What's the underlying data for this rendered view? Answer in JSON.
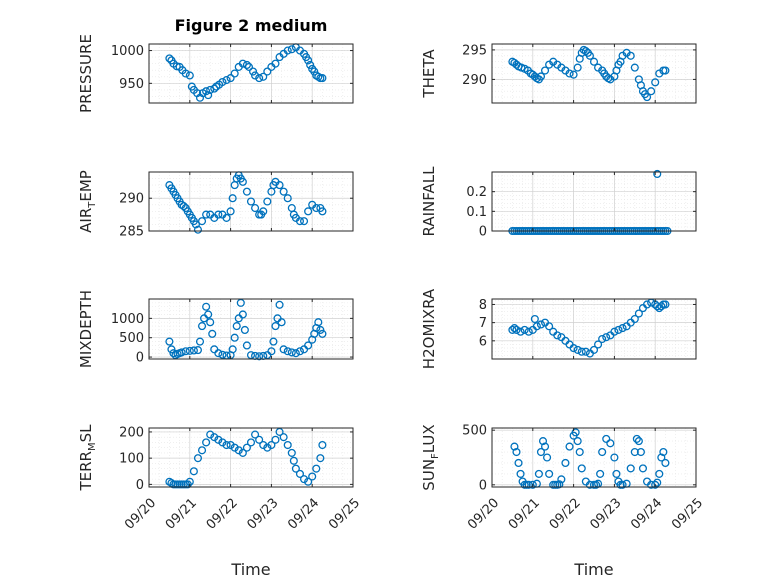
{
  "figure_title": "Figure 2 medium",
  "xlabel": "Time",
  "x_tick_labels": [
    "09/20",
    "09/21",
    "09/22",
    "09/23",
    "09/24",
    "09/25"
  ],
  "marker_color": "#0072bd",
  "chart_data": [
    {
      "type": "scatter",
      "ylabel": "PRESSURE",
      "ylim": [
        920,
        1010
      ],
      "yticks": [
        "950",
        "1000"
      ],
      "ytick_values": [
        950,
        1000
      ],
      "x_days": [
        0.5,
        0.55,
        0.6,
        0.68,
        0.75,
        0.82,
        0.9,
        1.0,
        1.05,
        1.1,
        1.18,
        1.25,
        1.32,
        1.4,
        1.45,
        1.5,
        1.6,
        1.65,
        1.72,
        1.8,
        1.9,
        2.0,
        2.1,
        2.2,
        2.3,
        2.4,
        2.45,
        2.55,
        2.6,
        2.7,
        2.8,
        2.9,
        3.0,
        3.1,
        3.2,
        3.3,
        3.4,
        3.5,
        3.6,
        3.7,
        3.8,
        3.85,
        3.9,
        3.95,
        4.0,
        4.05,
        4.1,
        4.15,
        4.2,
        4.25
      ],
      "values": [
        988,
        985,
        980,
        976,
        975,
        970,
        965,
        962,
        945,
        940,
        935,
        928,
        935,
        938,
        932,
        940,
        942,
        945,
        948,
        952,
        955,
        958,
        965,
        975,
        980,
        978,
        975,
        968,
        962,
        958,
        960,
        968,
        975,
        980,
        990,
        995,
        1000,
        1002,
        1005,
        1000,
        995,
        990,
        985,
        978,
        972,
        968,
        962,
        960,
        958,
        958
      ]
    },
    {
      "type": "scatter",
      "ylabel": "THETA",
      "ylim": [
        286,
        296
      ],
      "yticks": [
        "290",
        "295"
      ],
      "ytick_values": [
        290,
        295
      ],
      "x_days": [
        0.5,
        0.55,
        0.6,
        0.65,
        0.72,
        0.8,
        0.88,
        0.95,
        1.0,
        1.05,
        1.1,
        1.15,
        1.2,
        1.3,
        1.4,
        1.5,
        1.6,
        1.7,
        1.8,
        1.9,
        2.0,
        2.1,
        2.15,
        2.2,
        2.25,
        2.3,
        2.35,
        2.4,
        2.5,
        2.6,
        2.7,
        2.75,
        2.8,
        2.85,
        2.9,
        3.0,
        3.05,
        3.1,
        3.15,
        3.2,
        3.3,
        3.4,
        3.5,
        3.6,
        3.65,
        3.7,
        3.75,
        3.8,
        3.9,
        4.0,
        4.1,
        4.2,
        4.25
      ],
      "values": [
        293,
        292.8,
        292.5,
        292.2,
        292,
        291.8,
        291.5,
        291,
        290.8,
        290.5,
        290.2,
        290,
        290.5,
        291.5,
        292.5,
        293,
        292.5,
        292,
        291.5,
        291,
        290.8,
        292,
        293.5,
        294.5,
        295,
        294.8,
        294.5,
        294,
        293,
        292,
        291.5,
        291,
        290.5,
        290.2,
        290,
        290.5,
        291.5,
        292.5,
        293,
        294,
        294.5,
        294,
        292,
        290,
        289,
        288,
        287.5,
        287,
        288,
        289.5,
        291,
        291.5,
        291.5
      ]
    },
    {
      "type": "scatter",
      "ylabel": "AIR_TEMP",
      "ylim": [
        285,
        294
      ],
      "yticks": [
        "285",
        "290"
      ],
      "ytick_values": [
        285,
        290
      ],
      "x_days": [
        0.5,
        0.55,
        0.6,
        0.65,
        0.7,
        0.75,
        0.8,
        0.85,
        0.9,
        0.95,
        1.0,
        1.05,
        1.1,
        1.15,
        1.2,
        1.3,
        1.4,
        1.5,
        1.6,
        1.7,
        1.8,
        1.9,
        2.0,
        2.05,
        2.1,
        2.15,
        2.2,
        2.25,
        2.3,
        2.4,
        2.5,
        2.6,
        2.7,
        2.75,
        2.8,
        2.9,
        3.0,
        3.05,
        3.1,
        3.2,
        3.3,
        3.4,
        3.5,
        3.55,
        3.6,
        3.7,
        3.8,
        3.9,
        4.0,
        4.1,
        4.2,
        4.25
      ],
      "values": [
        292,
        291.5,
        291,
        290.5,
        290,
        289.5,
        289,
        288.8,
        288.5,
        288,
        287.5,
        287,
        286.5,
        286,
        285.2,
        286.5,
        287.5,
        287.5,
        287,
        287.5,
        287.5,
        287,
        288,
        290,
        292,
        293,
        293.5,
        293,
        292.5,
        291,
        289.5,
        288.5,
        287.5,
        287.5,
        288,
        289.5,
        291,
        292,
        292.5,
        292,
        291,
        290,
        288.5,
        287.5,
        287,
        286.5,
        286.5,
        288,
        289,
        288.5,
        288.5,
        288
      ]
    },
    {
      "type": "scatter",
      "ylabel": "RAINFALL",
      "ylim": [
        0,
        0.3
      ],
      "yticks": [
        "0",
        "0.1",
        "0.2"
      ],
      "ytick_values": [
        0,
        0.1,
        0.2
      ],
      "x_days": [
        0.5,
        0.55,
        0.6,
        0.65,
        0.7,
        0.75,
        0.8,
        0.85,
        0.9,
        0.95,
        1.0,
        1.05,
        1.1,
        1.15,
        1.2,
        1.25,
        1.3,
        1.35,
        1.4,
        1.45,
        1.5,
        1.55,
        1.6,
        1.65,
        1.7,
        1.75,
        1.8,
        1.85,
        1.9,
        1.95,
        2.0,
        2.05,
        2.1,
        2.15,
        2.2,
        2.25,
        2.3,
        2.35,
        2.4,
        2.45,
        2.5,
        2.55,
        2.6,
        2.65,
        2.7,
        2.75,
        2.8,
        2.85,
        2.9,
        2.95,
        3.0,
        3.05,
        3.1,
        3.15,
        3.2,
        3.25,
        3.3,
        3.35,
        3.4,
        3.45,
        3.5,
        3.55,
        3.6,
        3.65,
        3.7,
        3.75,
        3.8,
        3.85,
        3.9,
        3.95,
        4.0,
        4.05,
        4.1,
        4.15,
        4.2,
        4.25,
        4.3,
        4.05
      ],
      "values": [
        0,
        0,
        0,
        0,
        0,
        0,
        0,
        0,
        0,
        0,
        0,
        0,
        0,
        0,
        0,
        0,
        0,
        0,
        0,
        0,
        0,
        0,
        0,
        0,
        0,
        0,
        0,
        0,
        0,
        0,
        0,
        0,
        0,
        0,
        0,
        0,
        0,
        0,
        0,
        0,
        0,
        0,
        0,
        0,
        0,
        0,
        0,
        0,
        0,
        0,
        0,
        0,
        0,
        0,
        0,
        0,
        0,
        0,
        0,
        0,
        0,
        0,
        0,
        0,
        0,
        0,
        0,
        0,
        0,
        0,
        0,
        0,
        0,
        0,
        0,
        0,
        0,
        0.29
      ]
    },
    {
      "type": "scatter",
      "ylabel": "MIXDEPTH",
      "ylim": [
        -50,
        1500
      ],
      "yticks": [
        "0",
        "500",
        "1000"
      ],
      "ytick_values": [
        0,
        500,
        1000
      ],
      "x_days": [
        0.5,
        0.55,
        0.6,
        0.65,
        0.7,
        0.75,
        0.8,
        0.9,
        1.0,
        1.1,
        1.2,
        1.25,
        1.3,
        1.35,
        1.4,
        1.45,
        1.5,
        1.55,
        1.6,
        1.7,
        1.8,
        1.9,
        2.0,
        2.05,
        2.1,
        2.15,
        2.2,
        2.25,
        2.3,
        2.35,
        2.4,
        2.5,
        2.6,
        2.7,
        2.8,
        2.9,
        3.0,
        3.05,
        3.1,
        3.15,
        3.2,
        3.25,
        3.3,
        3.4,
        3.5,
        3.6,
        3.7,
        3.8,
        3.9,
        4.0,
        4.05,
        4.1,
        4.15,
        4.2,
        4.25
      ],
      "values": [
        400,
        200,
        100,
        50,
        80,
        100,
        120,
        150,
        160,
        170,
        180,
        400,
        800,
        1000,
        1300,
        1100,
        900,
        600,
        200,
        100,
        60,
        40,
        50,
        200,
        500,
        800,
        1000,
        1400,
        1100,
        700,
        300,
        50,
        30,
        20,
        30,
        50,
        150,
        400,
        800,
        1000,
        1350,
        900,
        200,
        150,
        120,
        100,
        150,
        200,
        300,
        450,
        600,
        750,
        900,
        700,
        600
      ]
    },
    {
      "type": "scatter",
      "ylabel": "H2OMIXRA",
      "ylim": [
        5,
        8.3
      ],
      "yticks": [
        "6",
        "7",
        "8"
      ],
      "ytick_values": [
        6,
        7,
        8
      ],
      "x_days": [
        0.5,
        0.55,
        0.6,
        0.7,
        0.8,
        0.9,
        1.0,
        1.05,
        1.1,
        1.2,
        1.3,
        1.4,
        1.5,
        1.6,
        1.7,
        1.8,
        1.9,
        2.0,
        2.1,
        2.2,
        2.3,
        2.4,
        2.5,
        2.6,
        2.7,
        2.8,
        2.9,
        3.0,
        3.1,
        3.2,
        3.3,
        3.4,
        3.5,
        3.6,
        3.7,
        3.8,
        3.9,
        4.0,
        4.05,
        4.1,
        4.15,
        4.2,
        4.25
      ],
      "values": [
        6.6,
        6.7,
        6.6,
        6.5,
        6.6,
        6.5,
        6.6,
        7.2,
        6.8,
        6.9,
        7.0,
        6.8,
        6.5,
        6.3,
        6.2,
        6.0,
        5.8,
        5.6,
        5.5,
        5.4,
        5.4,
        5.3,
        5.5,
        5.8,
        6.1,
        6.2,
        6.3,
        6.5,
        6.6,
        6.7,
        6.8,
        7.0,
        7.2,
        7.5,
        7.8,
        8.0,
        8.1,
        8.0,
        7.9,
        7.8,
        7.9,
        8.0,
        8.0
      ]
    },
    {
      "type": "scatter",
      "ylabel": "TERR_MSL",
      "ylim": [
        -10,
        215
      ],
      "yticks": [
        "0",
        "100",
        "200"
      ],
      "ytick_values": [
        0,
        100,
        200
      ],
      "x_days": [
        0.5,
        0.55,
        0.6,
        0.65,
        0.7,
        0.75,
        0.8,
        0.85,
        0.9,
        0.95,
        1.0,
        1.1,
        1.2,
        1.3,
        1.4,
        1.5,
        1.6,
        1.7,
        1.8,
        1.9,
        2.0,
        2.1,
        2.2,
        2.3,
        2.4,
        2.5,
        2.6,
        2.7,
        2.8,
        2.9,
        3.0,
        3.1,
        3.2,
        3.3,
        3.4,
        3.5,
        3.55,
        3.6,
        3.7,
        3.8,
        3.9,
        4.0,
        4.1,
        4.2,
        4.25
      ],
      "values": [
        10,
        5,
        0,
        0,
        0,
        0,
        0,
        0,
        0,
        0,
        10,
        50,
        100,
        130,
        160,
        190,
        180,
        170,
        160,
        150,
        150,
        140,
        130,
        120,
        140,
        160,
        190,
        170,
        150,
        140,
        150,
        170,
        200,
        180,
        150,
        120,
        90,
        60,
        40,
        20,
        10,
        30,
        60,
        100,
        150
      ]
    },
    {
      "type": "scatter",
      "ylabel": "SUN_FLUX",
      "ylim": [
        -20,
        520
      ],
      "yticks": [
        "0",
        "500"
      ],
      "ytick_values": [
        0,
        500
      ],
      "x_days": [
        0.55,
        0.6,
        0.65,
        0.7,
        0.75,
        0.8,
        0.85,
        0.9,
        1.0,
        1.1,
        1.15,
        1.2,
        1.25,
        1.3,
        1.35,
        1.4,
        1.5,
        1.55,
        1.6,
        1.65,
        1.7,
        1.8,
        1.9,
        2.0,
        2.05,
        2.1,
        2.15,
        2.2,
        2.3,
        2.4,
        2.5,
        2.55,
        2.6,
        2.65,
        2.7,
        2.8,
        2.9,
        3.0,
        3.05,
        3.1,
        3.15,
        3.2,
        3.3,
        3.4,
        3.5,
        3.55,
        3.6,
        3.65,
        3.7,
        3.8,
        3.9,
        4.0,
        4.05,
        4.1,
        4.15,
        4.2,
        4.25
      ],
      "values": [
        350,
        300,
        200,
        100,
        30,
        0,
        0,
        0,
        0,
        10,
        100,
        300,
        400,
        350,
        250,
        100,
        0,
        0,
        0,
        5,
        50,
        200,
        350,
        450,
        480,
        400,
        300,
        150,
        30,
        0,
        0,
        0,
        10,
        100,
        300,
        420,
        380,
        250,
        100,
        30,
        0,
        0,
        10,
        150,
        300,
        420,
        400,
        300,
        150,
        30,
        0,
        0,
        20,
        100,
        250,
        300,
        200
      ]
    }
  ]
}
